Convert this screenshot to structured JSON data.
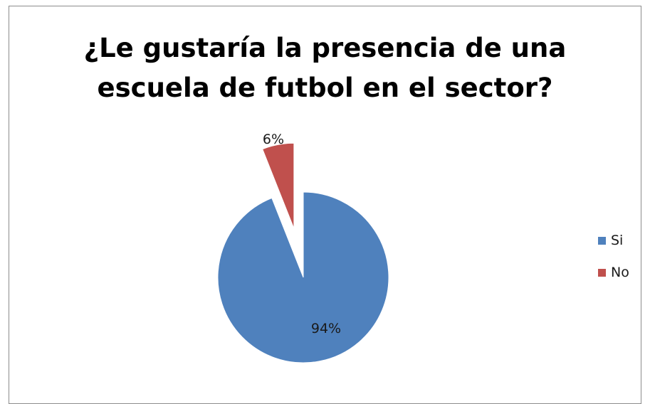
{
  "chart_data": {
    "type": "pie",
    "title_lines": [
      "¿Le gustaría la presencia de una",
      "escuela de futbol en el sector?"
    ],
    "categories": [
      "Si",
      "No"
    ],
    "values": [
      94,
      6
    ],
    "data_labels": [
      "94%",
      "6%"
    ],
    "colors": [
      "#4F81BD",
      "#C0504D"
    ],
    "exploded": [
      "No"
    ],
    "legend_position": "right"
  }
}
